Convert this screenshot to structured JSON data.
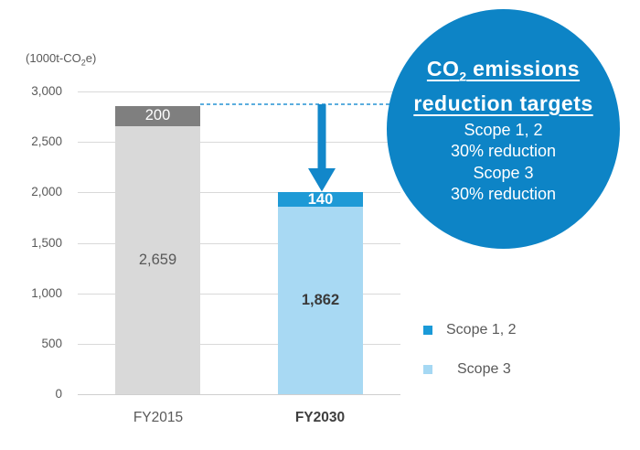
{
  "y_axis_unit": {
    "prefix": "(1000t-CO",
    "sub": "2",
    "suffix": "e)"
  },
  "chart_data": {
    "type": "bar",
    "stacked": true,
    "categories": [
      "FY2015",
      "FY2030"
    ],
    "series": [
      {
        "name": "Scope 1, 2",
        "values": [
          200,
          140
        ],
        "segment_colors": [
          "#7f7f7f",
          "#1e9ad6"
        ],
        "label_colors": [
          "#ffffff",
          "#ffffff"
        ],
        "label_bold": [
          false,
          true
        ]
      },
      {
        "name": "Scope 3",
        "values": [
          2659,
          1862
        ],
        "segment_colors": [
          "#d9d9d9",
          "#a8d9f3"
        ],
        "label_colors": [
          "#595959",
          "#3a3a3a"
        ],
        "label_bold": [
          false,
          true
        ]
      }
    ],
    "ylim": [
      0,
      3000
    ],
    "y_ticks": [
      0,
      500,
      1000,
      1500,
      2000,
      2500,
      3000
    ],
    "grid": true,
    "legend_position": "right-bottom"
  },
  "legend": {
    "items": [
      {
        "label": "Scope 1, 2",
        "color": "#1a9ad8"
      },
      {
        "label": "Scope 3",
        "color": "#a5d8f3"
      }
    ]
  },
  "annotation": {
    "title_co": "CO",
    "title_sub": "2",
    "title_rest": " emissions",
    "title_line2": "reduction targets",
    "lines": [
      "Scope 1, 2",
      "30% reduction",
      "Scope 3",
      "30% reduction"
    ],
    "circle_color": "#0d84c6"
  },
  "arrow": {
    "color": "#1287ca",
    "dash_color": "#2592d4"
  }
}
